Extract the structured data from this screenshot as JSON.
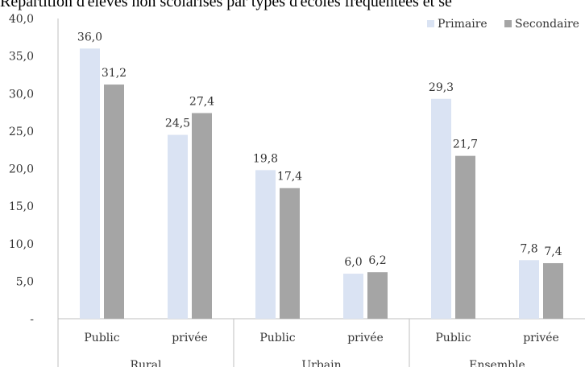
{
  "chart_data": {
    "type": "bar",
    "title": "Répartition d'élèves non scolarisés par types d'écoles fréquentées et se",
    "groups": [
      "Rural",
      "Urbain",
      "Ensemble"
    ],
    "categories": [
      "Public",
      "privée",
      "Public",
      "privée",
      "Public",
      "privée"
    ],
    "series": [
      {
        "name": "Primaire",
        "color": "#dae3f3",
        "values": [
          36.0,
          24.5,
          19.8,
          6.0,
          29.3,
          7.8
        ],
        "labels": [
          "36,0",
          "24,5",
          "19,8",
          "6,0",
          "29,3",
          "7,8"
        ]
      },
      {
        "name": "Secondaire",
        "color": "#a5a5a5",
        "values": [
          31.2,
          27.4,
          17.4,
          6.2,
          21.7,
          7.4
        ],
        "labels": [
          "31,2",
          "27,4",
          "17,4",
          "6,2",
          "21,7",
          "7,4"
        ]
      }
    ],
    "ylim": [
      0,
      40
    ],
    "yticks": [
      "-",
      "5,0",
      "10,0",
      "15,0",
      "20,0",
      "25,0",
      "30,0",
      "35,0",
      "40,0"
    ],
    "legend": "top-right",
    "grid": false
  }
}
